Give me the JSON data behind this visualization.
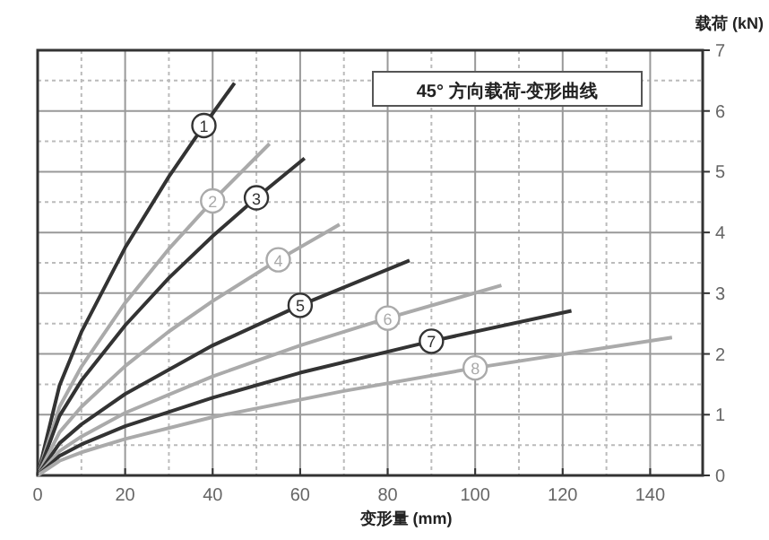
{
  "chart_data": {
    "type": "line",
    "title": "45° 方向载荷-变形曲线",
    "xlabel": "变形量 (mm)",
    "ylabel": "载荷 (kN)",
    "xlim": [
      0,
      152
    ],
    "ylim": [
      0,
      7
    ],
    "xticks": [
      0,
      20,
      40,
      60,
      80,
      100,
      120,
      140
    ],
    "yticks": [
      0,
      1,
      2,
      3,
      4,
      5,
      6,
      7
    ],
    "grid": true,
    "legend": false,
    "marker": "none",
    "line_style": "solid",
    "series": [
      {
        "name": "1",
        "color": "#333333",
        "x": [
          0,
          5,
          10,
          20,
          30,
          38,
          45
        ],
        "values": [
          0,
          1.48,
          2.36,
          3.75,
          4.92,
          5.76,
          6.46
        ]
      },
      {
        "name": "2",
        "color": "#aaaaaa",
        "x": [
          0,
          5,
          10,
          20,
          30,
          40,
          53
        ],
        "values": [
          0,
          1.13,
          1.79,
          2.84,
          3.73,
          4.52,
          5.46
        ]
      },
      {
        "name": "3",
        "color": "#333333",
        "x": [
          0,
          5,
          10,
          20,
          30,
          40,
          50,
          61
        ],
        "values": [
          0,
          0.98,
          1.56,
          2.47,
          3.25,
          3.94,
          4.57,
          5.22
        ]
      },
      {
        "name": "4",
        "color": "#aaaaaa",
        "x": [
          0,
          5,
          10,
          20,
          30,
          40,
          55,
          69
        ],
        "values": [
          0,
          0.71,
          1.13,
          1.8,
          2.37,
          2.87,
          3.55,
          4.13
        ]
      },
      {
        "name": "5",
        "color": "#333333",
        "x": [
          0,
          5,
          10,
          20,
          40,
          60,
          85
        ],
        "values": [
          0,
          0.53,
          0.84,
          1.34,
          2.14,
          2.8,
          3.54
        ]
      },
      {
        "name": "6",
        "color": "#aaaaaa",
        "x": [
          0,
          5,
          10,
          20,
          40,
          60,
          80,
          106
        ],
        "values": [
          0,
          0.4,
          0.64,
          1.03,
          1.63,
          2.14,
          2.59,
          3.13
        ]
      },
      {
        "name": "7",
        "color": "#333333",
        "x": [
          0,
          5,
          10,
          20,
          40,
          60,
          90,
          122
        ],
        "values": [
          0,
          0.32,
          0.51,
          0.81,
          1.28,
          1.69,
          2.21,
          2.71
        ]
      },
      {
        "name": "8",
        "color": "#aaaaaa",
        "x": [
          0,
          5,
          10,
          20,
          40,
          70,
          100,
          145
        ],
        "values": [
          0,
          0.24,
          0.38,
          0.6,
          0.96,
          1.39,
          1.77,
          2.27
        ]
      }
    ]
  }
}
